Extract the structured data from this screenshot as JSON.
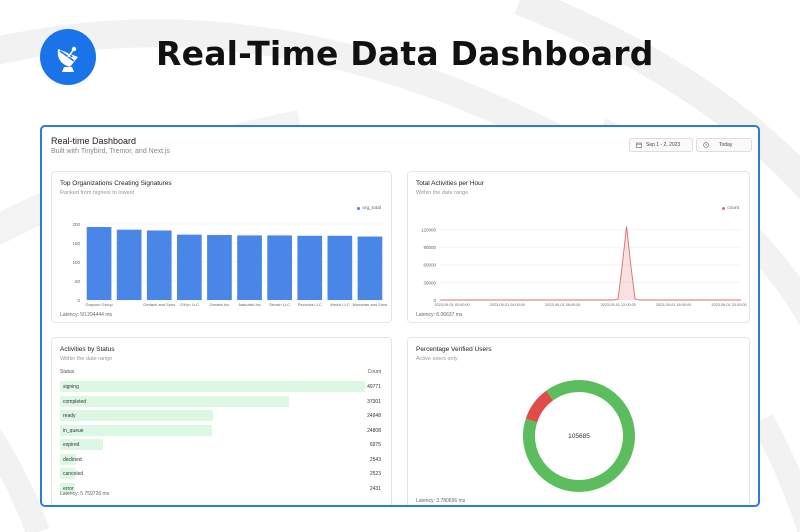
{
  "page_title": "Real-Time Data Dashboard",
  "dashboard": {
    "title": "Real-time Dashboard",
    "subtitle": "Built with Tinybird, Tremor, and Next.js",
    "date_range": "Sep 1 - 2, 2023",
    "today_label": "Today"
  },
  "colors": {
    "accent": "#2d7be0",
    "bar": "#4a85e8",
    "line": "#e06b6b",
    "donut_green": "#5cbd5f",
    "donut_red": "#e04c4c",
    "status_bar": "#ddf7e5"
  },
  "icons": {
    "logo": "satellite-dish-icon",
    "calendar": "calendar-icon",
    "clock": "clock-icon"
  },
  "cards": {
    "orgs": {
      "title": "Top Organizations Creating Signatures",
      "subtitle": "Ranked from highest to lowest",
      "legend": "org_total",
      "latency": "Latency: 50.294444 ms"
    },
    "activities": {
      "title": "Total Activities per Hour",
      "subtitle": "Within the date range",
      "legend": "count",
      "latency": "Latency: 6.06637 ms"
    },
    "status": {
      "title": "Activities by Status",
      "subtitle": "Within the date range",
      "col_status": "Status",
      "col_count": "Count",
      "latency": "Latency: 5.759726 ms"
    },
    "verified": {
      "title": "Percentage Verified Users",
      "subtitle": "Active users only",
      "center_value": "105685",
      "latency": "Latency: 3.780656 ms"
    }
  },
  "chart_data": [
    {
      "type": "bar",
      "title": "Top Organizations Creating Signatures",
      "categories": [
        "Grayson Group",
        "",
        "Gerlach and Sons",
        "O'Kon LLC",
        "Daniels Inc",
        "Jaskolski Inc",
        "Strosin LLC",
        "Pacocha LLC",
        "Welch LLC",
        "Monahan and Sons"
      ],
      "series": [
        {
          "name": "org_total",
          "values": [
            192,
            185,
            183,
            172,
            171,
            170,
            170,
            169,
            169,
            167
          ]
        }
      ],
      "yticks": [
        0,
        50,
        100,
        150,
        200
      ],
      "ytick_labels": [
        "0",
        "50",
        "100",
        "150",
        "200"
      ],
      "ylim": [
        0,
        200
      ],
      "legend_position": "top-right",
      "grid": true
    },
    {
      "type": "line",
      "title": "Total Activities per Hour",
      "x_labels": [
        "2023-09-01 00:00:00",
        "2023-09-01 04:00:00",
        "2023-09-01 08:00:00",
        "2023-09-01 12:00:00",
        "2023-09-01 16:00:00",
        "2023-09-01 20:00:00"
      ],
      "series": [
        {
          "name": "count",
          "values": [
            0,
            0,
            0,
            0,
            0,
            0,
            0,
            0,
            0,
            0,
            0,
            0,
            0,
            0,
            0,
            0,
            0,
            0,
            0,
            0,
            0,
            0,
            0,
            0,
            0,
            0,
            0,
            0,
            0,
            0,
            0,
            0,
            0,
            0,
            0,
            0,
            0,
            0,
            0,
            0,
            0,
            0,
            2000,
            60000,
            126000,
            60000,
            2000,
            0,
            0,
            0,
            0,
            0,
            0,
            0,
            0,
            0,
            0,
            0,
            0,
            0,
            0,
            0,
            0,
            0,
            0,
            0,
            0,
            0,
            0,
            0,
            0,
            0
          ]
        }
      ],
      "yticks": [
        0,
        30000,
        60000,
        90000,
        120000
      ],
      "ytick_labels": [
        "0",
        "30000",
        "60000",
        "90000",
        "120000"
      ],
      "ylim": [
        0,
        130000
      ],
      "legend_position": "top-right",
      "grid": true
    },
    {
      "type": "table",
      "title": "Activities by Status",
      "rows": [
        {
          "status": "signing",
          "count": 49771
        },
        {
          "status": "completed",
          "count": 37301
        },
        {
          "status": "ready",
          "count": 24948
        },
        {
          "status": "in_queue",
          "count": 24808
        },
        {
          "status": "expired",
          "count": 6975
        },
        {
          "status": "declined",
          "count": 2543
        },
        {
          "status": "canceled",
          "count": 2523
        },
        {
          "status": "error",
          "count": 2431
        }
      ]
    },
    {
      "type": "pie",
      "title": "Percentage Verified Users",
      "slices": [
        {
          "value": 90
        },
        {
          "value": 10
        }
      ],
      "center_label": "105685"
    }
  ]
}
